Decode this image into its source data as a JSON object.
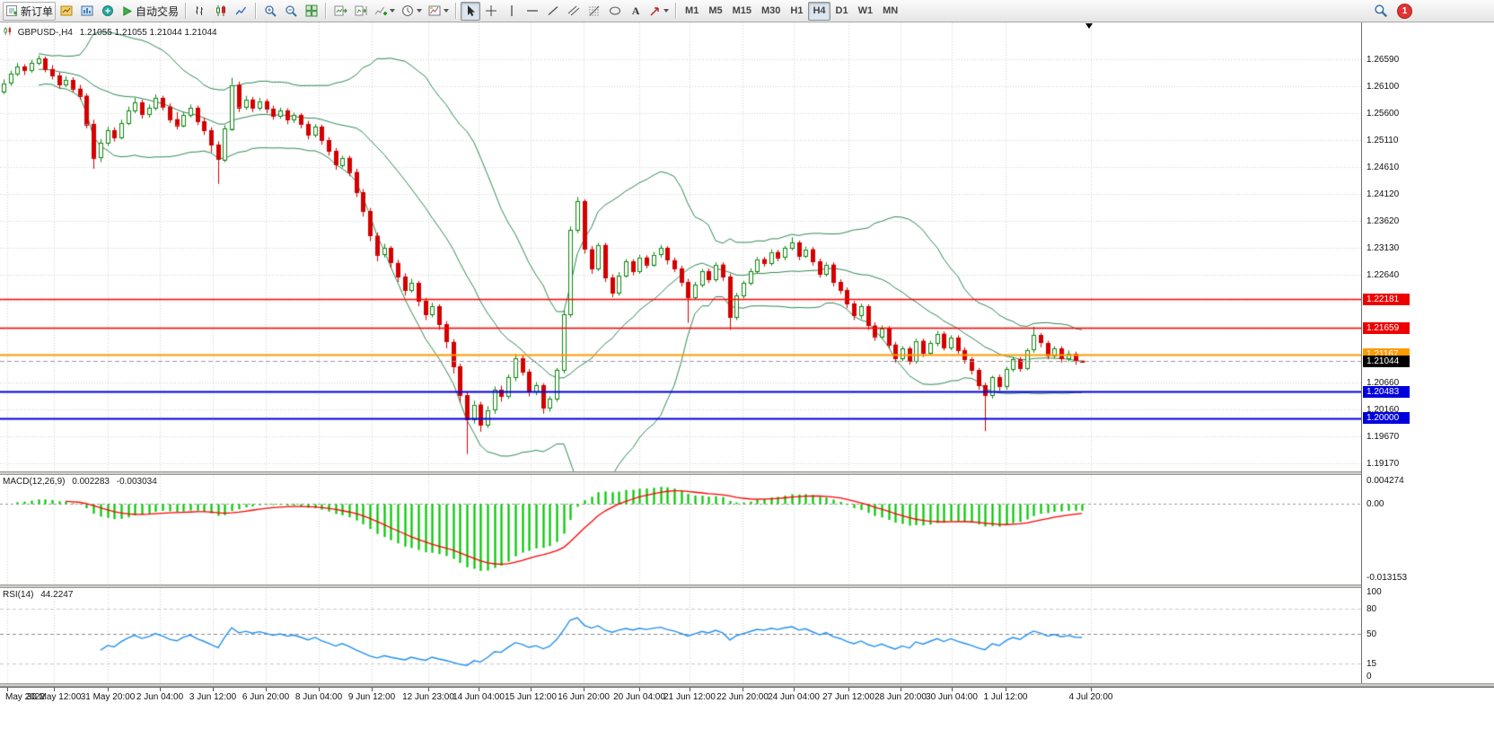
{
  "toolbar": {
    "new_order": {
      "label": "新订单"
    },
    "autotrading": {
      "label": "自动交易"
    },
    "timeframes": [
      "M1",
      "M5",
      "M15",
      "M30",
      "H1",
      "H4",
      "D1",
      "W1",
      "MN"
    ],
    "active_timeframe": "H4",
    "notification_count": "1",
    "text_tool_glyph": "A",
    "icons": [
      "new-order-icon",
      "new-chart-icon",
      "chart-profiles-icon",
      "metaeditor-icon",
      "autotrading-play-icon",
      "bar-chart-icon",
      "candlestick-chart-icon",
      "line-chart-icon",
      "zoom-in-icon",
      "zoom-out-icon",
      "tile-windows-icon",
      "auto-scroll-icon",
      "chart-shift-icon",
      "indicators-add-icon",
      "periods-clock-icon",
      "templates-icon",
      "cursor-icon",
      "crosshair-icon",
      "vertical-line-icon",
      "horizontal-line-icon",
      "trendline-icon",
      "channel-icon",
      "fibonacci-icon",
      "shapes-icon",
      "text-icon",
      "arrows-icon",
      "search-icon",
      "notification-badge",
      "chevron-down-icon"
    ]
  },
  "chart": {
    "symbol_label": "GBPUSD-,H4",
    "ohlc": "1.21055 1.21055 1.21044 1.21044"
  },
  "chart_data": {
    "type": "candlestick",
    "symbol": "GBPUSD",
    "timeframe": "H4",
    "ylim": [
      1.19022,
      1.27266
    ],
    "x_start": 4,
    "bar_spacing": 7.7,
    "grid": true,
    "colors": {
      "up": "#0a870a",
      "down": "#d40000",
      "bollinger": "#2e8b57",
      "grid": "#d4d4d4",
      "macd_hist": "#00c800",
      "macd_signal": "#ff0000",
      "rsi_line": "#2090f0"
    },
    "price_gridlines": [
      1.2659,
      1.261,
      1.256,
      1.2511,
      1.2461,
      1.2412,
      1.2362,
      1.2313,
      1.2264,
      1.2215,
      1.2165,
      1.2116,
      1.2066,
      1.2016,
      1.1967,
      1.1917
    ],
    "scale_labels": [
      {
        "text": "1.26590",
        "price": 1.2659
      },
      {
        "text": "1.26100",
        "price": 1.261
      },
      {
        "text": "1.25600",
        "price": 1.256
      },
      {
        "text": "1.25110",
        "price": 1.2511
      },
      {
        "text": "1.24610",
        "price": 1.2461
      },
      {
        "text": "1.24120",
        "price": 1.2412
      },
      {
        "text": "1.23620",
        "price": 1.2362
      },
      {
        "text": "1.23130",
        "price": 1.2313
      },
      {
        "text": "1.22640",
        "price": 1.2264
      },
      {
        "text": "1.20660",
        "price": 1.2066
      },
      {
        "text": "1.20160",
        "price": 1.2016
      },
      {
        "text": "1.19670",
        "price": 1.1967
      },
      {
        "text": "1.19170",
        "price": 1.1917
      }
    ],
    "hlines": [
      {
        "price": 1.22181,
        "color": "#ff0000",
        "width": 1.5
      },
      {
        "price": 1.21659,
        "color": "#ff0000",
        "width": 1.5
      },
      {
        "price": 1.21167,
        "color": "#ff9900",
        "width": 2
      },
      {
        "price": 1.20483,
        "color": "#0000dd",
        "width": 2
      },
      {
        "price": 1.2,
        "color": "#0000dd",
        "width": 2
      }
    ],
    "bid": {
      "price": 1.21044,
      "label": "1.21044"
    },
    "price_tags": [
      {
        "text": "1.22181",
        "price": 1.22181,
        "bg": "#ee0000"
      },
      {
        "text": "1.21659",
        "price": 1.21659,
        "bg": "#ee0000"
      },
      {
        "text": "1.21167",
        "price": 1.21167,
        "bg": "#ff9900"
      },
      {
        "text": "1.21044",
        "price": 1.21044,
        "bg": "#000000"
      },
      {
        "text": "1.20483",
        "price": 1.20483,
        "bg": "#0000dd"
      },
      {
        "text": "1.20000",
        "price": 1.2,
        "bg": "#0000dd"
      }
    ],
    "time_labels": [
      {
        "text": "May 2022",
        "x": 0.0053
      },
      {
        "text": "30 May 12:00",
        "x": 0.0396
      },
      {
        "text": "31 May 20:00",
        "x": 0.0792
      },
      {
        "text": "2 Jun 04:00",
        "x": 0.1174
      },
      {
        "text": "3 Jun 12:00",
        "x": 0.1563
      },
      {
        "text": "6 Jun 20:00",
        "x": 0.1953
      },
      {
        "text": "8 Jun 04:00",
        "x": 0.2342
      },
      {
        "text": "9 Jun 12:00",
        "x": 0.2731
      },
      {
        "text": "12 Jun 23:00",
        "x": 0.3147
      },
      {
        "text": "14 Jun 04:00",
        "x": 0.3516
      },
      {
        "text": "15 Jun 12:00",
        "x": 0.3899
      },
      {
        "text": "16 Jun 20:00",
        "x": 0.4288
      },
      {
        "text": "20 Jun 04:00",
        "x": 0.4697
      },
      {
        "text": "21 Jun 12:00",
        "x": 0.5066
      },
      {
        "text": "22 Jun 20:00",
        "x": 0.5455
      },
      {
        "text": "24 Jun 04:00",
        "x": 0.5831
      },
      {
        "text": "27 Jun 12:00",
        "x": 0.6233
      },
      {
        "text": "28 Jun 20:00",
        "x": 0.6616
      },
      {
        "text": "30 Jun 04:00",
        "x": 0.6992
      },
      {
        "text": "1 Jul 12:00",
        "x": 0.7388
      },
      {
        "text": "4 Jul 20:00",
        "x": 0.8014
      }
    ],
    "indicators": {
      "bollinger": {
        "period": 20,
        "deviation": 2
      },
      "macd": {
        "label": "MACD(12,26,9)",
        "value_main": "0.002283",
        "value_signal": "-0.003034",
        "scale_max": "0.004274",
        "scale_zero": "0.00",
        "scale_min": "-0.013153",
        "range": [
          -0.013153,
          0.004274
        ],
        "fast": 12,
        "slow": 26,
        "signal": 9
      },
      "rsi": {
        "label": "RSI(14)",
        "value": "44.2247",
        "period": 14,
        "levels": [
          100,
          80,
          50,
          15,
          0
        ],
        "range": [
          0,
          100
        ]
      }
    },
    "candles": [
      [
        1.26,
        1.2622,
        1.2595,
        1.2615
      ],
      [
        1.2615,
        1.2638,
        1.261,
        1.2632
      ],
      [
        1.2632,
        1.2652,
        1.2628,
        1.2645
      ],
      [
        1.2645,
        1.265,
        1.263,
        1.2638
      ],
      [
        1.2638,
        1.2658,
        1.2634,
        1.2652
      ],
      [
        1.2652,
        1.2666,
        1.2648,
        1.266
      ],
      [
        1.266,
        1.2664,
        1.2635,
        1.2641
      ],
      [
        1.2641,
        1.2648,
        1.2622,
        1.2629
      ],
      [
        1.2629,
        1.2635,
        1.2605,
        1.2612
      ],
      [
        1.2612,
        1.2628,
        1.2608,
        1.2621
      ],
      [
        1.2621,
        1.2626,
        1.2598,
        1.2605
      ],
      [
        1.2605,
        1.2612,
        1.2585,
        1.2592
      ],
      [
        1.2592,
        1.2596,
        1.2532,
        1.254
      ],
      [
        1.254,
        1.2548,
        1.2458,
        1.2478
      ],
      [
        1.2478,
        1.2512,
        1.247,
        1.2505
      ],
      [
        1.2505,
        1.2535,
        1.25,
        1.2528
      ],
      [
        1.2528,
        1.2534,
        1.2508,
        1.2515
      ],
      [
        1.2515,
        1.2548,
        1.2512,
        1.2542
      ],
      [
        1.2542,
        1.2572,
        1.2538,
        1.2565
      ],
      [
        1.2565,
        1.2588,
        1.256,
        1.258
      ],
      [
        1.258,
        1.2585,
        1.255,
        1.2558
      ],
      [
        1.2558,
        1.2576,
        1.2552,
        1.257
      ],
      [
        1.257,
        1.2594,
        1.2565,
        1.2588
      ],
      [
        1.2588,
        1.2592,
        1.2565,
        1.2572
      ],
      [
        1.2572,
        1.2578,
        1.2542,
        1.2549
      ],
      [
        1.2549,
        1.2562,
        1.253,
        1.2538
      ],
      [
        1.2538,
        1.2562,
        1.2534,
        1.2557
      ],
      [
        1.2557,
        1.2576,
        1.2552,
        1.257
      ],
      [
        1.257,
        1.2574,
        1.2538,
        1.2545
      ],
      [
        1.2545,
        1.2552,
        1.252,
        1.2528
      ],
      [
        1.2528,
        1.2534,
        1.2488,
        1.2502
      ],
      [
        1.2502,
        1.2508,
        1.243,
        1.2475
      ],
      [
        1.2475,
        1.2538,
        1.247,
        1.2532
      ],
      [
        1.2532,
        1.2625,
        1.2528,
        1.2612
      ],
      [
        1.2612,
        1.2618,
        1.2562,
        1.2571
      ],
      [
        1.2571,
        1.2592,
        1.2566,
        1.2585
      ],
      [
        1.2585,
        1.259,
        1.2562,
        1.257
      ],
      [
        1.257,
        1.2588,
        1.2565,
        1.2582
      ],
      [
        1.2582,
        1.2586,
        1.256,
        1.2568
      ],
      [
        1.2568,
        1.2574,
        1.2548,
        1.2555
      ],
      [
        1.2555,
        1.257,
        1.255,
        1.2565
      ],
      [
        1.2565,
        1.2569,
        1.254,
        1.2548
      ],
      [
        1.2548,
        1.2561,
        1.2542,
        1.2556
      ],
      [
        1.2556,
        1.256,
        1.2532,
        1.254
      ],
      [
        1.254,
        1.2546,
        1.2512,
        1.252
      ],
      [
        1.252,
        1.254,
        1.2515,
        1.2535
      ],
      [
        1.2535,
        1.2539,
        1.2502,
        1.251
      ],
      [
        1.251,
        1.2516,
        1.2482,
        1.249
      ],
      [
        1.249,
        1.2496,
        1.2456,
        1.2465
      ],
      [
        1.2465,
        1.2482,
        1.246,
        1.2478
      ],
      [
        1.2478,
        1.2482,
        1.2444,
        1.2452
      ],
      [
        1.2452,
        1.2458,
        1.2406,
        1.2415
      ],
      [
        1.2415,
        1.2421,
        1.237,
        1.238
      ],
      [
        1.238,
        1.2386,
        1.2325,
        1.2335
      ],
      [
        1.2335,
        1.2341,
        1.2288,
        1.23
      ],
      [
        1.23,
        1.232,
        1.2295,
        1.2312
      ],
      [
        1.2312,
        1.2316,
        1.2275,
        1.2285
      ],
      [
        1.2285,
        1.2291,
        1.225,
        1.226
      ],
      [
        1.226,
        1.2266,
        1.2225,
        1.2235
      ],
      [
        1.2235,
        1.2256,
        1.223,
        1.2248
      ],
      [
        1.2248,
        1.2252,
        1.2205,
        1.2215
      ],
      [
        1.2215,
        1.2221,
        1.218,
        1.219
      ],
      [
        1.219,
        1.2212,
        1.2185,
        1.2205
      ],
      [
        1.2205,
        1.2209,
        1.2162,
        1.2172
      ],
      [
        1.2172,
        1.2178,
        1.2128,
        1.214
      ],
      [
        1.214,
        1.2145,
        1.2082,
        1.2095
      ],
      [
        1.2095,
        1.21,
        1.2028,
        1.2042
      ],
      [
        1.2042,
        1.2048,
        1.1934,
        1.1998
      ],
      [
        1.1998,
        1.2032,
        1.199,
        1.2025
      ],
      [
        1.2025,
        1.203,
        1.1975,
        1.1988
      ],
      [
        1.1988,
        1.2022,
        1.1982,
        1.2015
      ],
      [
        1.2015,
        1.2058,
        1.2008,
        1.2052
      ],
      [
        1.2052,
        1.206,
        1.203,
        1.204
      ],
      [
        1.204,
        1.208,
        1.2035,
        1.2075
      ],
      [
        1.2075,
        1.2118,
        1.2068,
        1.211
      ],
      [
        1.211,
        1.2115,
        1.2078,
        1.2085
      ],
      [
        1.2085,
        1.209,
        1.204,
        1.2048
      ],
      [
        1.2048,
        1.2066,
        1.2042,
        1.206
      ],
      [
        1.206,
        1.2064,
        1.2008,
        1.2018
      ],
      [
        1.2018,
        1.204,
        1.2012,
        1.2035
      ],
      [
        1.2035,
        1.2092,
        1.203,
        1.2088
      ],
      [
        1.2088,
        1.2198,
        1.2082,
        1.219
      ],
      [
        1.219,
        1.2352,
        1.2185,
        1.2345
      ],
      [
        1.2345,
        1.2406,
        1.234,
        1.2398
      ],
      [
        1.2398,
        1.2402,
        1.2302,
        1.231
      ],
      [
        1.231,
        1.2316,
        1.2265,
        1.2275
      ],
      [
        1.2275,
        1.2322,
        1.227,
        1.2318
      ],
      [
        1.2318,
        1.2322,
        1.225,
        1.2258
      ],
      [
        1.2258,
        1.2264,
        1.2222,
        1.223
      ],
      [
        1.223,
        1.2268,
        1.2225,
        1.2262
      ],
      [
        1.2262,
        1.2292,
        1.2258,
        1.2288
      ],
      [
        1.2288,
        1.2292,
        1.2262,
        1.227
      ],
      [
        1.227,
        1.23,
        1.2265,
        1.2295
      ],
      [
        1.2295,
        1.2299,
        1.2275,
        1.2282
      ],
      [
        1.2282,
        1.2305,
        1.2278,
        1.23
      ],
      [
        1.23,
        1.2318,
        1.2295,
        1.2312
      ],
      [
        1.2312,
        1.2316,
        1.2282,
        1.229
      ],
      [
        1.229,
        1.2295,
        1.2268,
        1.2275
      ],
      [
        1.2275,
        1.228,
        1.2242,
        1.225
      ],
      [
        1.225,
        1.2256,
        1.2175,
        1.2222
      ],
      [
        1.2222,
        1.225,
        1.2218,
        1.2245
      ],
      [
        1.2245,
        1.2274,
        1.224,
        1.227
      ],
      [
        1.227,
        1.2275,
        1.2248,
        1.2255
      ],
      [
        1.2255,
        1.2286,
        1.225,
        1.2282
      ],
      [
        1.2282,
        1.2286,
        1.2252,
        1.226
      ],
      [
        1.226,
        1.2265,
        1.2162,
        1.2185
      ],
      [
        1.2185,
        1.223,
        1.218,
        1.2225
      ],
      [
        1.2225,
        1.2252,
        1.222,
        1.2248
      ],
      [
        1.2248,
        1.2275,
        1.2244,
        1.227
      ],
      [
        1.227,
        1.2296,
        1.2265,
        1.2292
      ],
      [
        1.2292,
        1.2296,
        1.2278,
        1.2285
      ],
      [
        1.2285,
        1.231,
        1.228,
        1.2305
      ],
      [
        1.2305,
        1.2309,
        1.2288,
        1.2295
      ],
      [
        1.2295,
        1.2316,
        1.229,
        1.2312
      ],
      [
        1.2312,
        1.2332,
        1.2308,
        1.2322
      ],
      [
        1.2322,
        1.2326,
        1.229,
        1.2298
      ],
      [
        1.2298,
        1.2315,
        1.2294,
        1.231
      ],
      [
        1.231,
        1.2314,
        1.228,
        1.2288
      ],
      [
        1.2288,
        1.2293,
        1.2258,
        1.2265
      ],
      [
        1.2265,
        1.2286,
        1.226,
        1.2282
      ],
      [
        1.2282,
        1.2286,
        1.2242,
        1.225
      ],
      [
        1.225,
        1.2255,
        1.2228,
        1.2235
      ],
      [
        1.2235,
        1.224,
        1.2202,
        1.221
      ],
      [
        1.221,
        1.2215,
        1.218,
        1.2188
      ],
      [
        1.2188,
        1.221,
        1.2182,
        1.2205
      ],
      [
        1.2205,
        1.2209,
        1.2162,
        1.217
      ],
      [
        1.217,
        1.2176,
        1.2142,
        1.215
      ],
      [
        1.215,
        1.217,
        1.2145,
        1.2165
      ],
      [
        1.2165,
        1.2169,
        1.2128,
        1.2135
      ],
      [
        1.2135,
        1.214,
        1.2102,
        1.211
      ],
      [
        1.211,
        1.2132,
        1.2105,
        1.2128
      ],
      [
        1.2128,
        1.2132,
        1.2098,
        1.2105
      ],
      [
        1.2105,
        1.2146,
        1.21,
        1.2142
      ],
      [
        1.2142,
        1.2146,
        1.2112,
        1.212
      ],
      [
        1.212,
        1.2142,
        1.2115,
        1.2138
      ],
      [
        1.2138,
        1.216,
        1.2132,
        1.2155
      ],
      [
        1.2155,
        1.2159,
        1.2124,
        1.213
      ],
      [
        1.213,
        1.2152,
        1.2125,
        1.2148
      ],
      [
        1.2148,
        1.2152,
        1.2118,
        1.2125
      ],
      [
        1.2125,
        1.213,
        1.21,
        1.2108
      ],
      [
        1.2108,
        1.2112,
        1.208,
        1.2088
      ],
      [
        1.2088,
        1.2092,
        1.2052,
        1.206
      ],
      [
        1.206,
        1.2065,
        1.1976,
        1.2042
      ],
      [
        1.2042,
        1.2078,
        1.2036,
        1.2075
      ],
      [
        1.2075,
        1.208,
        1.205,
        1.2058
      ],
      [
        1.2058,
        1.2094,
        1.2052,
        1.209
      ],
      [
        1.209,
        1.2112,
        1.2085,
        1.2108
      ],
      [
        1.2108,
        1.2112,
        1.2085,
        1.2092
      ],
      [
        1.2092,
        1.2128,
        1.2088,
        1.2125
      ],
      [
        1.2125,
        1.2168,
        1.212,
        1.2152
      ],
      [
        1.2152,
        1.2156,
        1.213,
        1.2138
      ],
      [
        1.2138,
        1.2142,
        1.2108,
        1.2115
      ],
      [
        1.2115,
        1.2132,
        1.211,
        1.2128
      ],
      [
        1.2128,
        1.2132,
        1.2102,
        1.211
      ],
      [
        1.211,
        1.2124,
        1.2104,
        1.2118
      ],
      [
        1.2118,
        1.2122,
        1.2098,
        1.2106
      ],
      [
        1.21055,
        1.21055,
        1.21044,
        1.21044
      ]
    ]
  }
}
